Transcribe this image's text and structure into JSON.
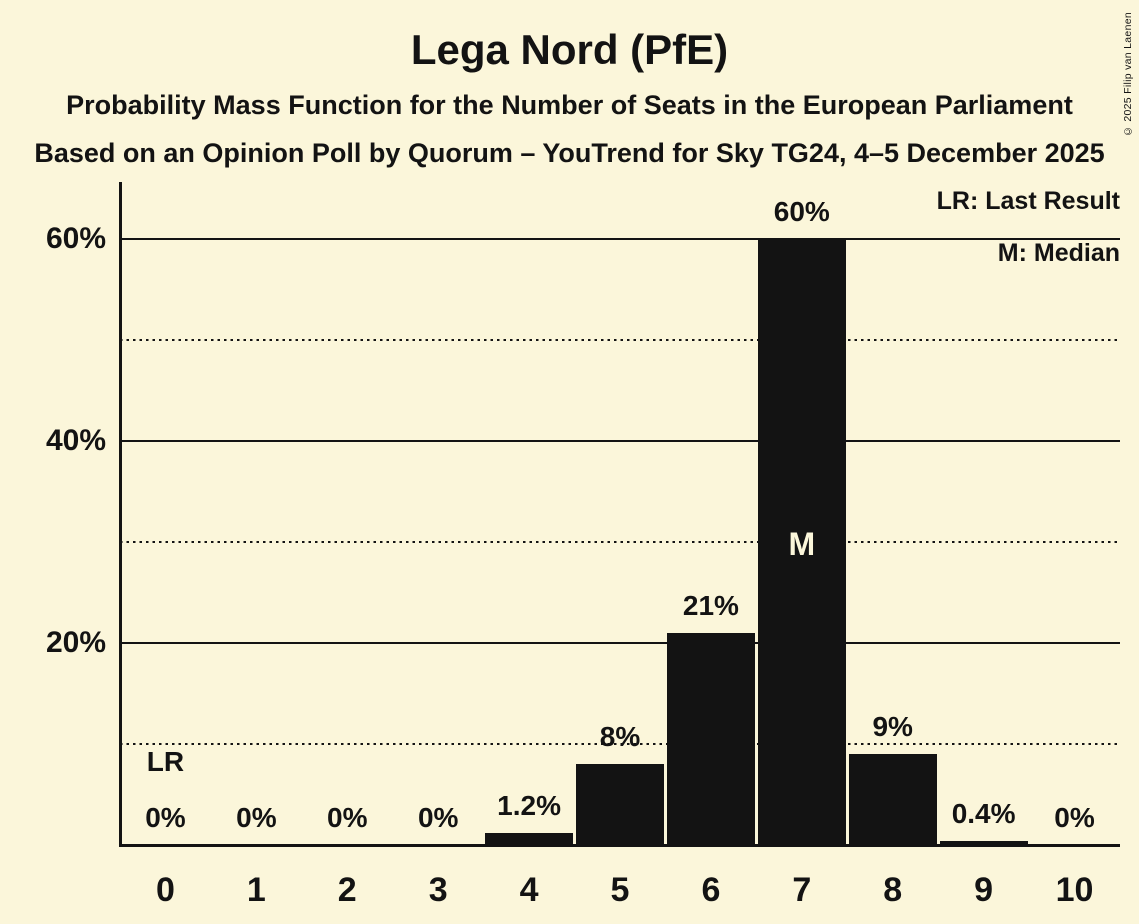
{
  "title": "Lega Nord (PfE)",
  "subtitle": "Probability Mass Function for the Number of Seats in the European Parliament",
  "source_line": "Based on an Opinion Poll by Quorum – YouTrend for Sky TG24, 4–5 December 2025",
  "copyright": "© 2025 Filip van Laenen",
  "legend": {
    "last_result": "LR: Last Result",
    "median": "M: Median"
  },
  "colors": {
    "background": "#FBF6DA",
    "bar": "#131313",
    "text": "#131313"
  },
  "chart_data": {
    "type": "bar",
    "title": "Lega Nord (PfE)",
    "categories": [
      "0",
      "1",
      "2",
      "3",
      "4",
      "5",
      "6",
      "7",
      "8",
      "9",
      "10"
    ],
    "values": [
      0,
      0,
      0,
      0,
      1.2,
      8,
      21,
      60,
      9,
      0.4,
      0
    ],
    "bar_labels": [
      "0%",
      "0%",
      "0%",
      "0%",
      "1.2%",
      "8%",
      "21%",
      "60%",
      "9%",
      "0.4%",
      "0%"
    ],
    "ylim": [
      0,
      66
    ],
    "yticks": [
      {
        "value": 20,
        "label": "20%"
      },
      {
        "value": 40,
        "label": "40%"
      },
      {
        "value": 60,
        "label": "60%"
      }
    ],
    "gridlines_solid": [
      20,
      40,
      60
    ],
    "gridlines_dotted": [
      10,
      30,
      50
    ],
    "median": {
      "category": "7",
      "label": "M"
    },
    "last_result": {
      "category": "0",
      "label": "LR"
    },
    "legend_position": "top-right",
    "grid": true
  }
}
